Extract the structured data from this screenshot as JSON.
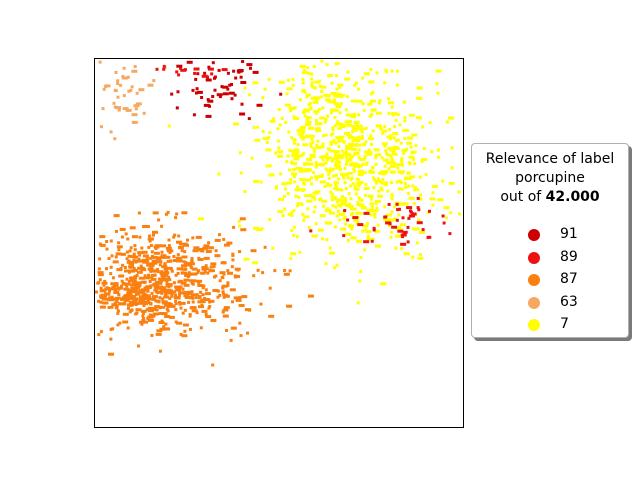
{
  "chart_data": {
    "type": "scatter",
    "title": "",
    "xlabel": "",
    "ylabel": "",
    "axes_ticks": "none",
    "grid": false,
    "legend": {
      "placement": "right",
      "title_line1": "Relevance of label",
      "title_line2": "porcupine",
      "title_prefix": "out of",
      "title_value": "42.000",
      "entries": [
        {
          "label": "91",
          "color": "#cc0000"
        },
        {
          "label": "89",
          "color": "#ee1111"
        },
        {
          "label": "87",
          "color": "#f98011"
        },
        {
          "label": "63",
          "color": "#f6a862"
        },
        {
          "label": "7",
          "color": "#ffff00"
        }
      ]
    },
    "series": [
      {
        "label": "91",
        "color": "#cc0000",
        "clusters": [
          {
            "cx": 0.34,
            "cy": 0.06,
            "sx": 0.07,
            "sy": 0.05,
            "n": 60
          }
        ]
      },
      {
        "label": "89",
        "color": "#ee1111",
        "clusters": [
          {
            "cx": 0.82,
            "cy": 0.44,
            "sx": 0.08,
            "sy": 0.03,
            "n": 50
          },
          {
            "cx": 0.25,
            "cy": 0.03,
            "sx": 0.06,
            "sy": 0.01,
            "n": 15
          }
        ]
      },
      {
        "label": "87",
        "color": "#f98011",
        "clusters": [
          {
            "cx": 0.17,
            "cy": 0.6,
            "sx": 0.12,
            "sy": 0.07,
            "n": 700
          },
          {
            "cx": 0.08,
            "cy": 0.64,
            "sx": 0.06,
            "sy": 0.02,
            "n": 120
          }
        ]
      },
      {
        "label": "63",
        "color": "#f6a862",
        "clusters": [
          {
            "cx": 0.07,
            "cy": 0.08,
            "sx": 0.05,
            "sy": 0.06,
            "n": 50
          }
        ]
      },
      {
        "label": "7",
        "color": "#ffff00",
        "clusters": [
          {
            "cx": 0.68,
            "cy": 0.28,
            "sx": 0.12,
            "sy": 0.12,
            "n": 800
          },
          {
            "cx": 0.6,
            "cy": 0.1,
            "sx": 0.05,
            "sy": 0.06,
            "n": 80
          }
        ]
      }
    ]
  }
}
